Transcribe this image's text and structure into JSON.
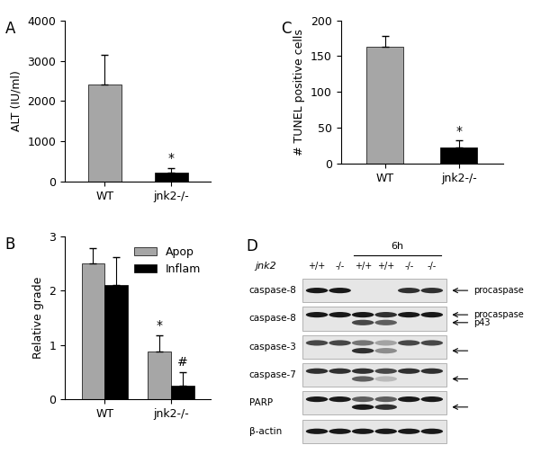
{
  "chart_data": [
    {
      "type": "bar",
      "title": "A",
      "categories": [
        "WT",
        "jnk2-/-"
      ],
      "values": [
        2400,
        220
      ],
      "errors": [
        750,
        120
      ],
      "colors": [
        "#a6a6a6",
        "#000000"
      ],
      "y_label": "ALT (IU/ml)",
      "ylim": [
        0,
        4000
      ],
      "yticks": [
        0,
        1000,
        2000,
        3000,
        4000
      ],
      "significance": [
        null,
        "*"
      ]
    },
    {
      "type": "bar",
      "title": "B",
      "categories": [
        "WT",
        "jnk2-/-"
      ],
      "series": [
        {
          "name": "Apop",
          "color": "#a6a6a6",
          "values": [
            2.5,
            0.88
          ],
          "errors": [
            0.28,
            0.3
          ],
          "significance": [
            null,
            "*"
          ]
        },
        {
          "name": "Inflam",
          "color": "#000000",
          "values": [
            2.1,
            0.25
          ],
          "errors": [
            0.52,
            0.25
          ],
          "significance": [
            null,
            "#"
          ]
        }
      ],
      "y_label": "Relative grade",
      "ylim": [
        0,
        3
      ],
      "yticks": [
        0,
        1,
        2,
        3
      ],
      "legend": "upper right"
    },
    {
      "type": "bar",
      "title": "C",
      "categories": [
        "WT",
        "jnk2-/-"
      ],
      "values": [
        163,
        22
      ],
      "errors": [
        15,
        10
      ],
      "colors": [
        "#a6a6a6",
        "#000000"
      ],
      "y_label": "# TUNEL positive cells",
      "ylim": [
        0,
        200
      ],
      "yticks": [
        0,
        50,
        100,
        150,
        200
      ],
      "significance": [
        null,
        "*"
      ]
    }
  ],
  "blot": {
    "title": "D",
    "genotype_label": "jnk2",
    "lanes": [
      "+/+",
      "-/-",
      "+/+",
      "+/+",
      "-/-",
      "-/-"
    ],
    "time_label": "6h",
    "time_span": [
      3,
      6
    ],
    "rows": [
      {
        "label": "caspase-8",
        "levels": [
          {
            "intensity": [
              1,
              1,
              0,
              0,
              0.9,
              0.9
            ],
            "arrow": true,
            "label": "procaspase"
          }
        ]
      },
      {
        "label": "caspase-8",
        "levels": [
          {
            "intensity": [
              1,
              1,
              1,
              0.9,
              1,
              1
            ],
            "arrow": true,
            "label": "procaspase"
          },
          {
            "intensity": [
              0,
              0,
              0.8,
              0.7,
              0,
              0
            ],
            "arrow": true,
            "label": "p43"
          }
        ]
      },
      {
        "label": "caspase-3",
        "levels": [
          {
            "intensity": [
              0.8,
              0.8,
              0.6,
              0.4,
              0.8,
              0.8
            ],
            "arrow": false
          },
          {
            "intensity": [
              0,
              0,
              0.9,
              0.5,
              0,
              0
            ],
            "arrow": true
          }
        ]
      },
      {
        "label": "caspase-7",
        "levels": [
          {
            "intensity": [
              0.9,
              0.9,
              0.9,
              0.8,
              0.9,
              0.9
            ],
            "arrow": false
          },
          {
            "intensity": [
              0,
              0,
              0.7,
              0.3,
              0,
              0
            ],
            "arrow": true
          }
        ]
      },
      {
        "label": "PARP",
        "levels": [
          {
            "intensity": [
              1,
              1,
              0.7,
              0.7,
              1,
              1
            ],
            "arrow": false
          },
          {
            "intensity": [
              0,
              0,
              1,
              0.9,
              0,
              0
            ],
            "arrow": true
          }
        ]
      },
      {
        "label": "β-actin",
        "levels": [
          {
            "intensity": [
              1,
              1,
              1,
              1,
              1,
              1
            ],
            "arrow": false
          }
        ]
      }
    ]
  }
}
